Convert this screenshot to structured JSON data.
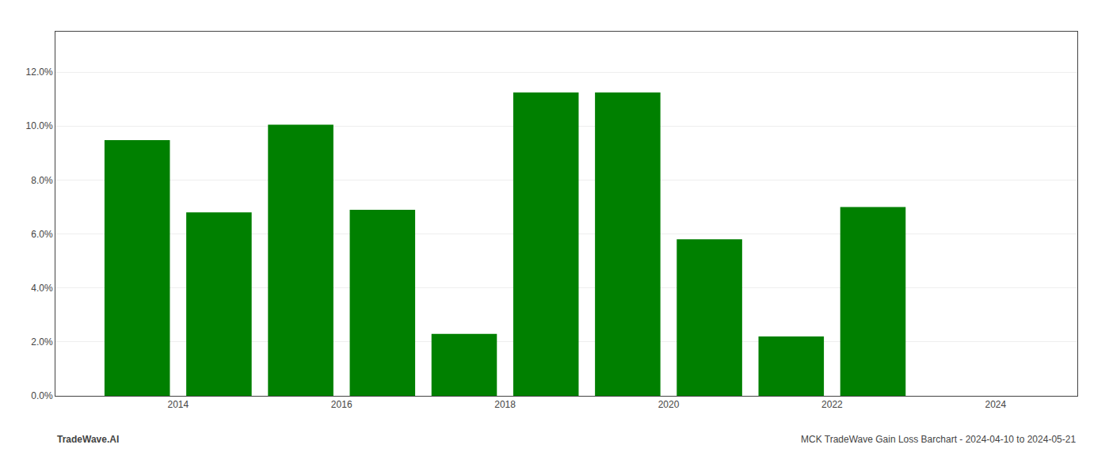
{
  "chart_data": {
    "type": "bar",
    "x": [
      2013.5,
      2014.5,
      2015.5,
      2016.5,
      2017.5,
      2018.5,
      2019.5,
      2020.5,
      2021.5,
      2022.5
    ],
    "values": [
      0.0948,
      0.068,
      0.1005,
      0.069,
      0.023,
      0.1125,
      0.1125,
      0.058,
      0.022,
      0.07
    ],
    "color": "#008000",
    "xlim": [
      2012.5,
      2025.0
    ],
    "xticks": [
      2014,
      2016,
      2018,
      2020,
      2022,
      2024
    ],
    "ylim": [
      0,
      0.135
    ],
    "yticks": [
      {
        "value": 0.0,
        "label": "0.0%"
      },
      {
        "value": 0.02,
        "label": "2.0%"
      },
      {
        "value": 0.04,
        "label": "4.0%"
      },
      {
        "value": 0.06,
        "label": "6.0%"
      },
      {
        "value": 0.08,
        "label": "8.0%"
      },
      {
        "value": 0.1,
        "label": "10.0%"
      },
      {
        "value": 0.12,
        "label": "12.0%"
      }
    ],
    "grid": true,
    "annotations": [
      "TradeWave.AI",
      "MCK TradeWave Gain Loss Barchart - 2024-04-10 to 2024-05-21"
    ]
  }
}
